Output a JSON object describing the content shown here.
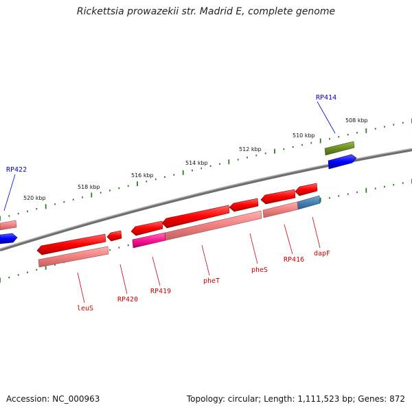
{
  "title": "Rickettsia prowazekii str. Madrid E, complete genome",
  "footer": {
    "accession": "Accession: NC_000963",
    "summary": "Topology: circular; Length: 1,111,523 bp; Genes: 872"
  },
  "colors": {
    "backbone": "#808080",
    "tick_dots": "#2e7d22",
    "forward_gene": "#0000ff",
    "forward_label": "#0000cc",
    "reverse_gene": "#ff0000",
    "reverse_cds": "#f08080",
    "reverse_label": "#cc0000",
    "olive_feature": "#6b8e23",
    "magenta_feature": "#ff1493",
    "steel_feature": "#4682b4"
  },
  "scale_labels": [
    "508 kbp",
    "510 kbp",
    "512 kbp",
    "514 kbp",
    "516 kbp",
    "518 kbp",
    "520 kbp"
  ],
  "forward_labels": [
    "RP414",
    "RP422"
  ],
  "reverse_labels": [
    "dapF",
    "RP416",
    "pheS",
    "pheT",
    "RP419",
    "RP420",
    "leuS"
  ]
}
